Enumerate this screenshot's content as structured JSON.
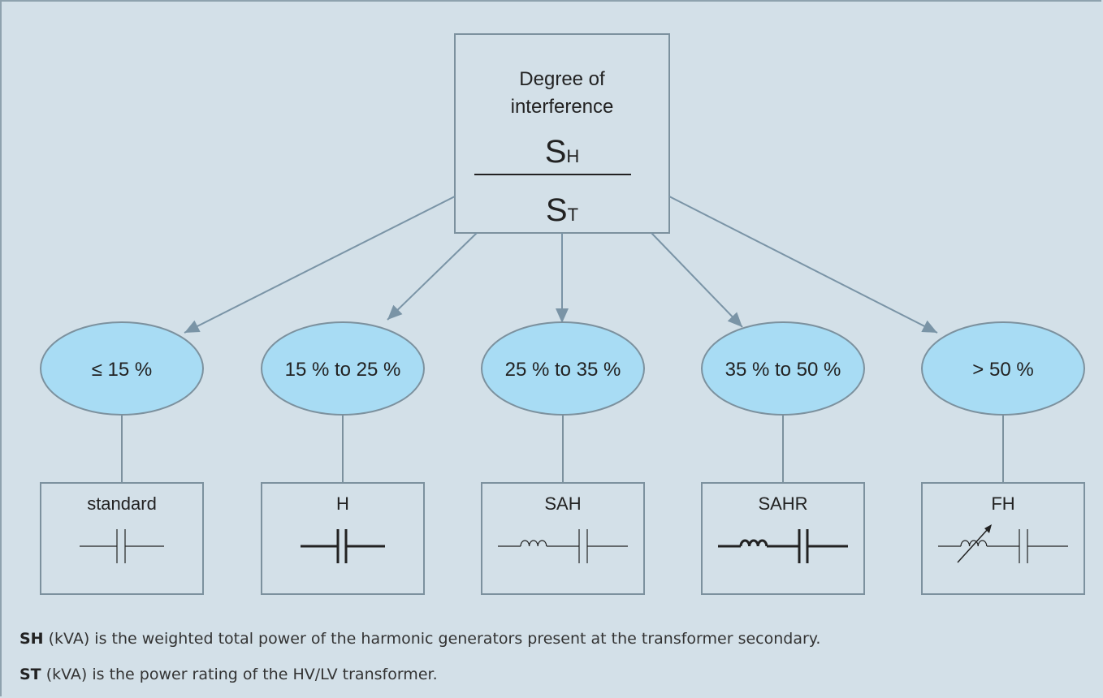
{
  "header": {
    "line1": "Degree of",
    "line2": "interference",
    "numerator": {
      "main": "S",
      "sub": "H"
    },
    "denominator": {
      "main": "S",
      "sub": "T"
    }
  },
  "nodes": [
    {
      "range": "≤ 15 %",
      "type": "standard"
    },
    {
      "range": "15 % to 25 %",
      "type": "H"
    },
    {
      "range": "25 % to 35 %",
      "type": "SAH"
    },
    {
      "range": "35 % to 50 %",
      "type": "SAHR"
    },
    {
      "range": "> 50 %",
      "type": "FH"
    }
  ],
  "notes": [
    {
      "term": "SH",
      "text": "(kVA) is the weighted total power of the harmonic generators present at the transformer secondary."
    },
    {
      "term": "ST",
      "text": "(kVA) is the power rating of the HV/LV transformer."
    }
  ]
}
